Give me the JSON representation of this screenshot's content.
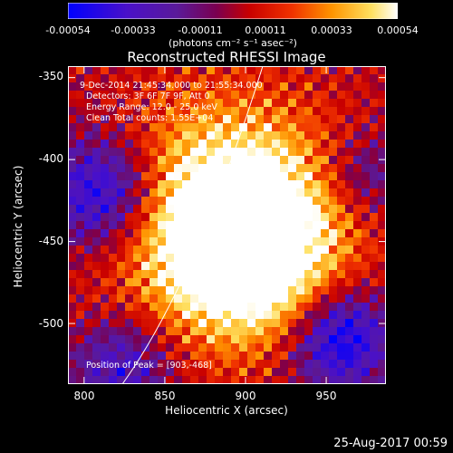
{
  "chart_data": {
    "type": "heatmap",
    "title": "Reconstructed RHESSI Image",
    "xlabel": "Heliocentric X (arcsec)",
    "ylabel": "Heliocentric Y (arcsec)",
    "xlim": [
      790,
      987
    ],
    "ylim": [
      -537,
      -343
    ],
    "x_ticks": [
      800,
      850,
      900,
      950
    ],
    "y_ticks": [
      -350,
      -400,
      -450,
      -500
    ],
    "colorbar": {
      "ticks": [
        "-0.00054",
        "-0.00033",
        "-0.00011",
        "0.00011",
        "0.00033",
        "0.00054"
      ],
      "tick_values": [
        -0.00054,
        -0.00033,
        -0.00011,
        0.00011,
        0.00033,
        0.00054
      ],
      "units": "(photons cm⁻² s⁻¹ asec⁻²)",
      "range": [
        -0.00054,
        0.00054
      ],
      "colormap": "blue-purple-red-yellow-white"
    },
    "annotations": [
      "9-Dec-2014 21:45:34.000 to 21:55:34.000",
      "Detectors: 3F 6F 7F 9F, Att 0",
      "Energy Range: 12.0 - 25.0 keV",
      "Clean    Total counts: 1.55E+04"
    ],
    "peak_label": "Position of Peak = [903,-468]",
    "peak": [
      903,
      -468
    ],
    "grid": false
  },
  "timestamp": "25-Aug-2017 00:59"
}
